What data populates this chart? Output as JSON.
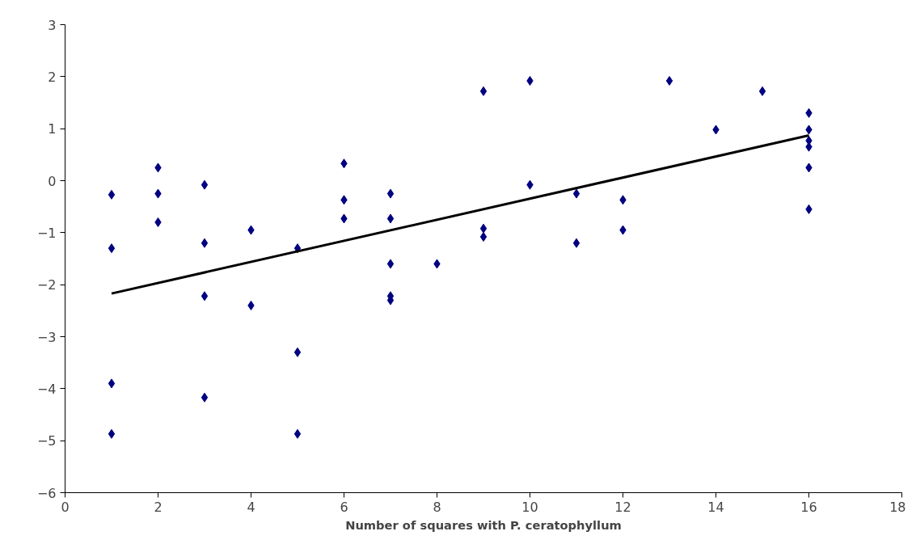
{
  "chart_data": {
    "type": "scatter",
    "xlabel": "Number of squares with P. ceratophyllum",
    "xlim": [
      0,
      18
    ],
    "ylim": [
      -6,
      3
    ],
    "xticks": [
      0,
      2,
      4,
      6,
      8,
      10,
      12,
      14,
      16,
      18
    ],
    "yticks": [
      -6,
      -5,
      -4,
      -3,
      -2,
      -1,
      0,
      1,
      2,
      3
    ],
    "grid": false,
    "series": [
      {
        "color": "#000080",
        "marker": "diamond",
        "x": [
          1,
          1,
          1,
          1,
          2,
          2,
          2,
          3,
          3,
          3,
          3,
          4,
          4,
          5,
          5,
          5,
          6,
          6,
          6,
          7,
          7,
          7,
          7,
          7,
          8,
          9,
          9,
          9,
          10,
          10,
          11,
          11,
          12,
          12,
          13,
          14,
          15,
          16,
          16,
          16,
          16,
          16,
          16
        ],
        "values": [
          -0.27,
          -1.3,
          -3.9,
          -4.87,
          0.25,
          -0.25,
          -0.8,
          -0.08,
          -1.2,
          -2.22,
          -4.17,
          -0.95,
          -2.4,
          -1.3,
          -3.3,
          -4.87,
          0.33,
          -0.37,
          -0.73,
          -0.25,
          -0.73,
          -1.6,
          -2.22,
          -2.3,
          -1.6,
          1.72,
          -0.92,
          -1.08,
          1.92,
          -0.08,
          -0.25,
          -1.2,
          -0.37,
          -0.95,
          1.92,
          0.98,
          1.72,
          1.3,
          0.98,
          0.77,
          0.65,
          0.25,
          -0.55
        ]
      },
      {
        "type": "line",
        "color": "#000000",
        "x": [
          1,
          16
        ],
        "values": [
          -2.17,
          0.87
        ],
        "marker": "none",
        "line_style": "solid"
      }
    ]
  }
}
